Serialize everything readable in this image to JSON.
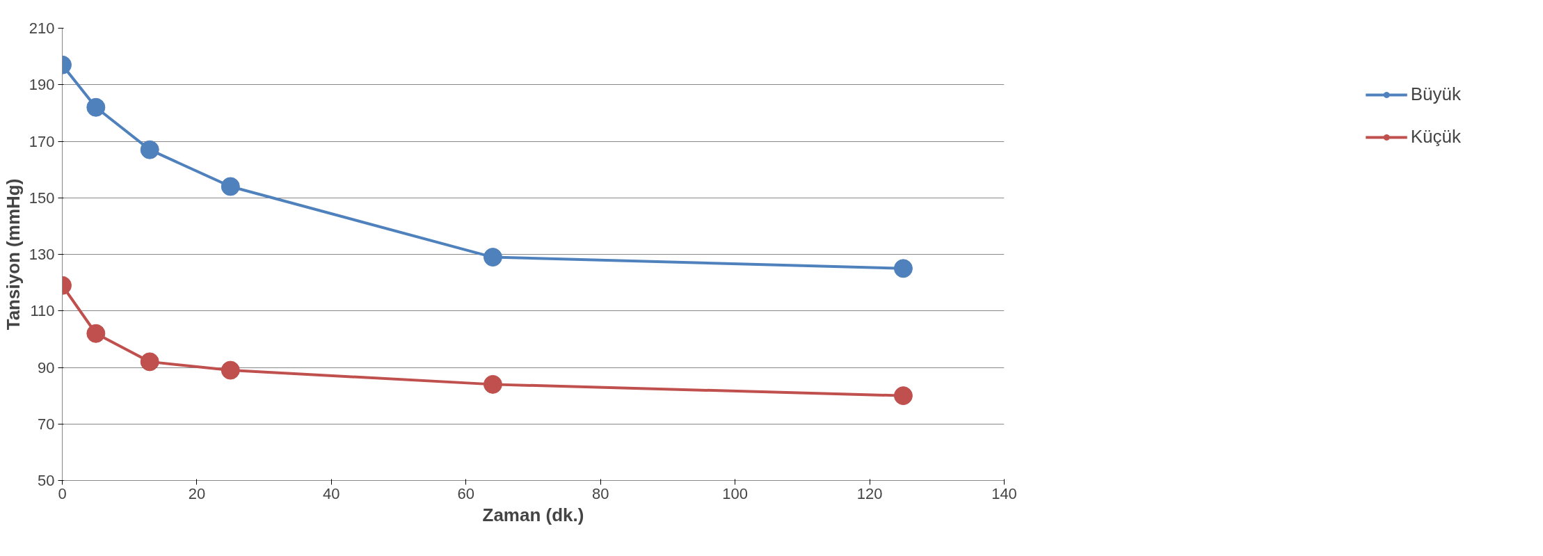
{
  "chart_data": {
    "type": "line",
    "xlabel": "Zaman (dk.)",
    "ylabel": "Tansiyon (mmHg)",
    "xlim": [
      0,
      140
    ],
    "xticks": [
      0,
      20,
      40,
      60,
      80,
      100,
      120,
      140
    ],
    "ylim": [
      50,
      210
    ],
    "yticks": [
      50,
      70,
      90,
      110,
      130,
      150,
      170,
      190,
      210
    ],
    "grid": "y",
    "legend": "right",
    "marker": "circle",
    "line_style": "solid",
    "series": [
      {
        "name": "Büyük",
        "color": "#4f81bd",
        "x": [
          0,
          5,
          13,
          25,
          64,
          125
        ],
        "values": [
          197,
          182,
          167,
          154,
          129,
          125
        ]
      },
      {
        "name": "Küçük",
        "color": "#c0504d",
        "x": [
          0,
          5,
          13,
          25,
          64,
          125
        ],
        "values": [
          119,
          102,
          92,
          89,
          84,
          80
        ]
      }
    ]
  }
}
